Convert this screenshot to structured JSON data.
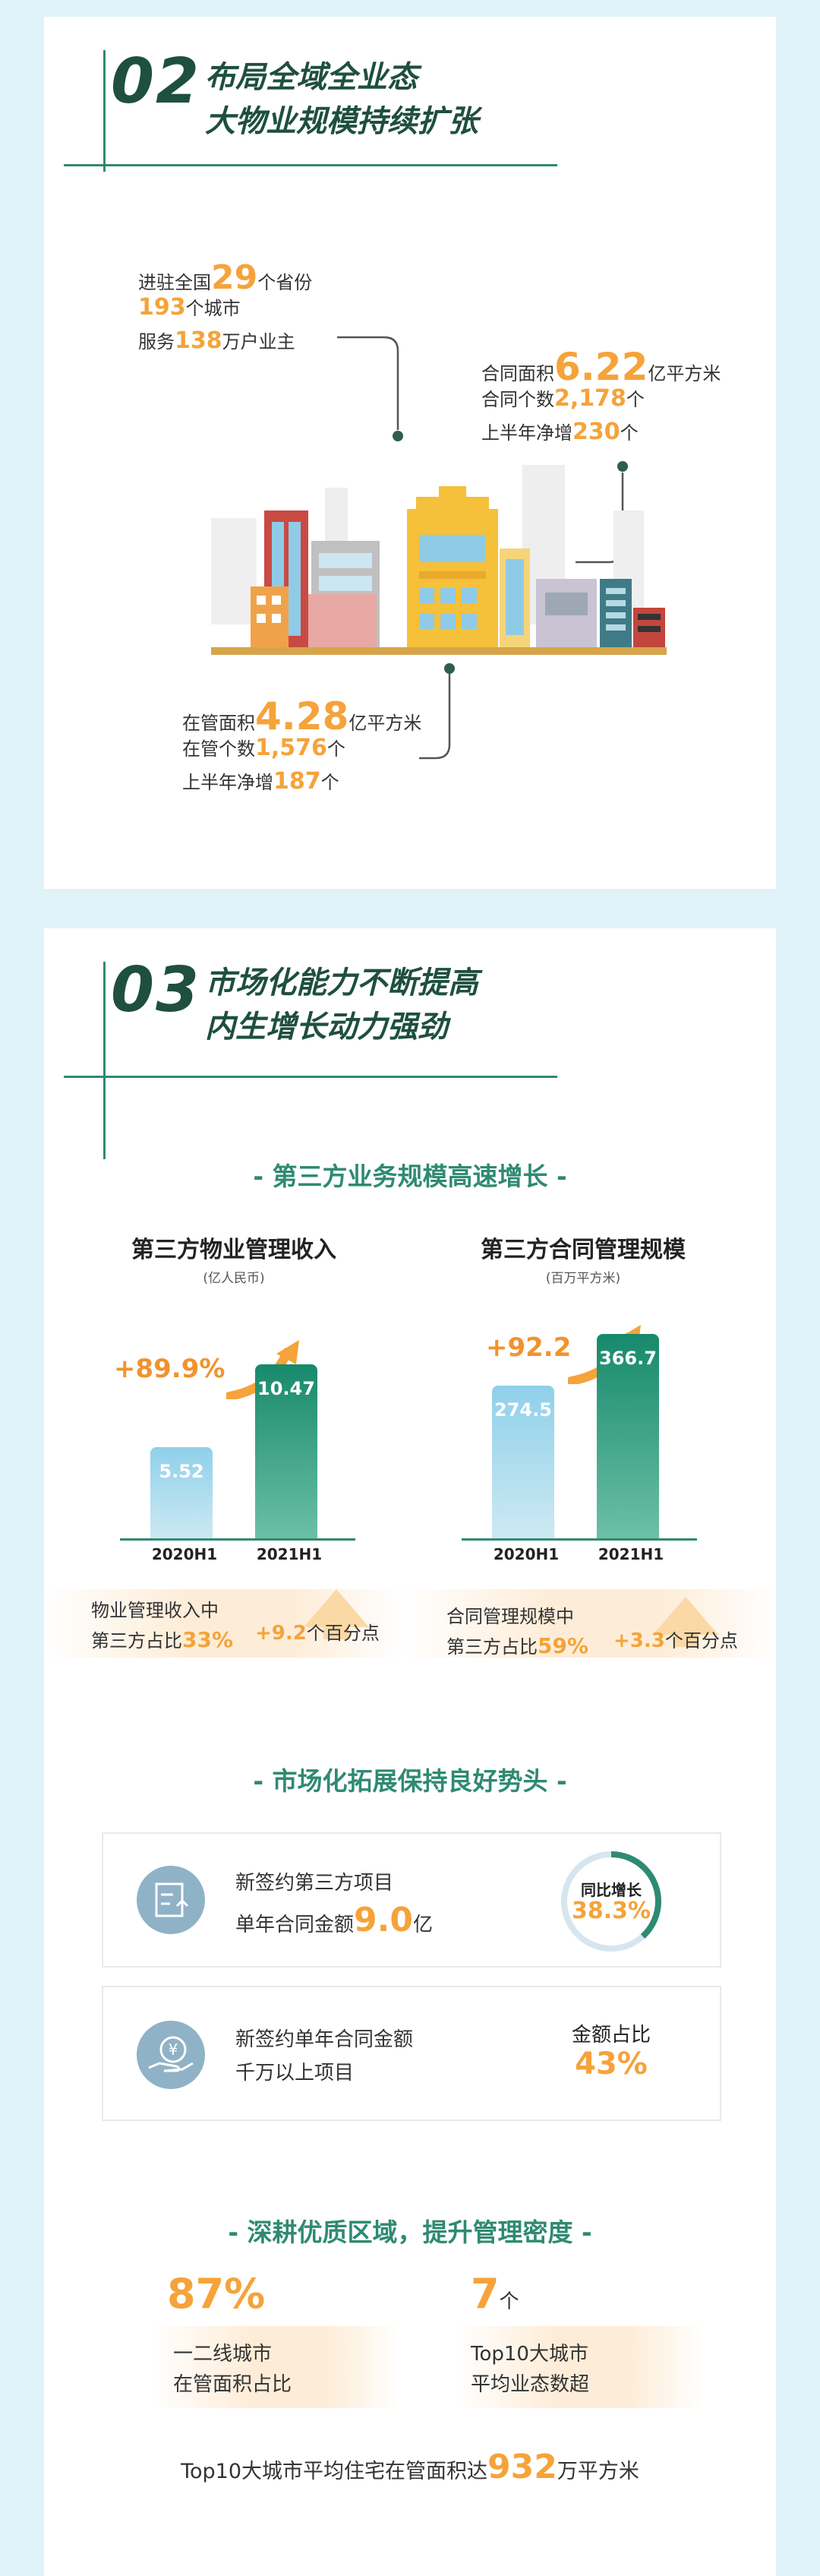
{
  "section2": {
    "number": "02",
    "title_line1": "布局全域全业态",
    "title_line2": "大物业规模持续扩张",
    "stat_a": {
      "p1": "进驻全国",
      "v1": "29",
      "s1": "个省份",
      "v2": "193",
      "s2": "个城市",
      "p3": "服务",
      "v3": "138",
      "s3": "万户业主"
    },
    "stat_b": {
      "p1": "合同面积",
      "v1": "6.22",
      "s1": "亿平方米",
      "p2": "合同个数",
      "v2": "2,178",
      "s2": "个",
      "p3": "上半年净增",
      "v3": "230",
      "s3": "个"
    },
    "stat_c": {
      "p1": "在管面积",
      "v1": "4.28",
      "s1": "亿平方米",
      "p2": "在管个数",
      "v2": "1,576",
      "s2": "个",
      "p3": "上半年净增",
      "v3": "187",
      "s3": "个"
    }
  },
  "section3": {
    "number": "03",
    "title_line1": "市场化能力不断提高",
    "title_line2": "内生增长动力强劲",
    "sub1": "- 第三方业务规模高速增长 -",
    "sub2": "- 市场化拓展保持良好势头 -",
    "sub3": "- 深耕优质区域，提升管理密度 -",
    "strip1": {
      "line1": "物业管理收入中",
      "line2_pre": "第三方占比",
      "line2_val": "33%",
      "delta": "+9.2",
      "delta_unit": "个百分点"
    },
    "strip2": {
      "line1": "合同管理规模中",
      "line2_pre": "第三方占比",
      "line2_val": "59%",
      "delta": "+3.3",
      "delta_unit": "个百分点"
    },
    "box1": {
      "line1": "新签约第三方项目",
      "line2_pre": "单年合同金额",
      "line2_val": "9.0",
      "line2_unit": "亿",
      "right_label": "同比增长",
      "right_value": "38.3%",
      "ring_fraction": 0.383
    },
    "box2": {
      "line1": "新签约单年合同金额",
      "line2": "千万以上项目",
      "right_label": "金额占比",
      "right_value": "43%"
    },
    "density": {
      "left_value": "87%",
      "left_line1": "一二线城市",
      "left_line2": "在管面积占比",
      "right_value": "7",
      "right_unit": "个",
      "right_line1": "Top10大城市",
      "right_line2": "平均业态数超",
      "bottom_pre": "Top10大城市平均住宅在管面积达",
      "bottom_value": "932",
      "bottom_unit": "万平方米"
    }
  },
  "chart_data": [
    {
      "type": "bar",
      "title": "第三方物业管理收入",
      "unit": "(亿人民币)",
      "categories": [
        "2020H1",
        "2021H1"
      ],
      "values": [
        5.52,
        10.47
      ],
      "value_labels": [
        "5.52",
        "10.47"
      ],
      "growth_label": "+89.9%"
    },
    {
      "type": "bar",
      "title": "第三方合同管理规模",
      "unit": "(百万平方米)",
      "categories": [
        "2020H1",
        "2021H1"
      ],
      "values": [
        274.5,
        366.7
      ],
      "value_labels": [
        "274.5",
        "366.7"
      ],
      "growth_label": "+92.2"
    }
  ],
  "colors": {
    "accent_green": "#2f8a72",
    "accent_orange": "#f5a33a",
    "bar_light": "#8fcbe6",
    "bar_dark": "#1e8d73"
  }
}
